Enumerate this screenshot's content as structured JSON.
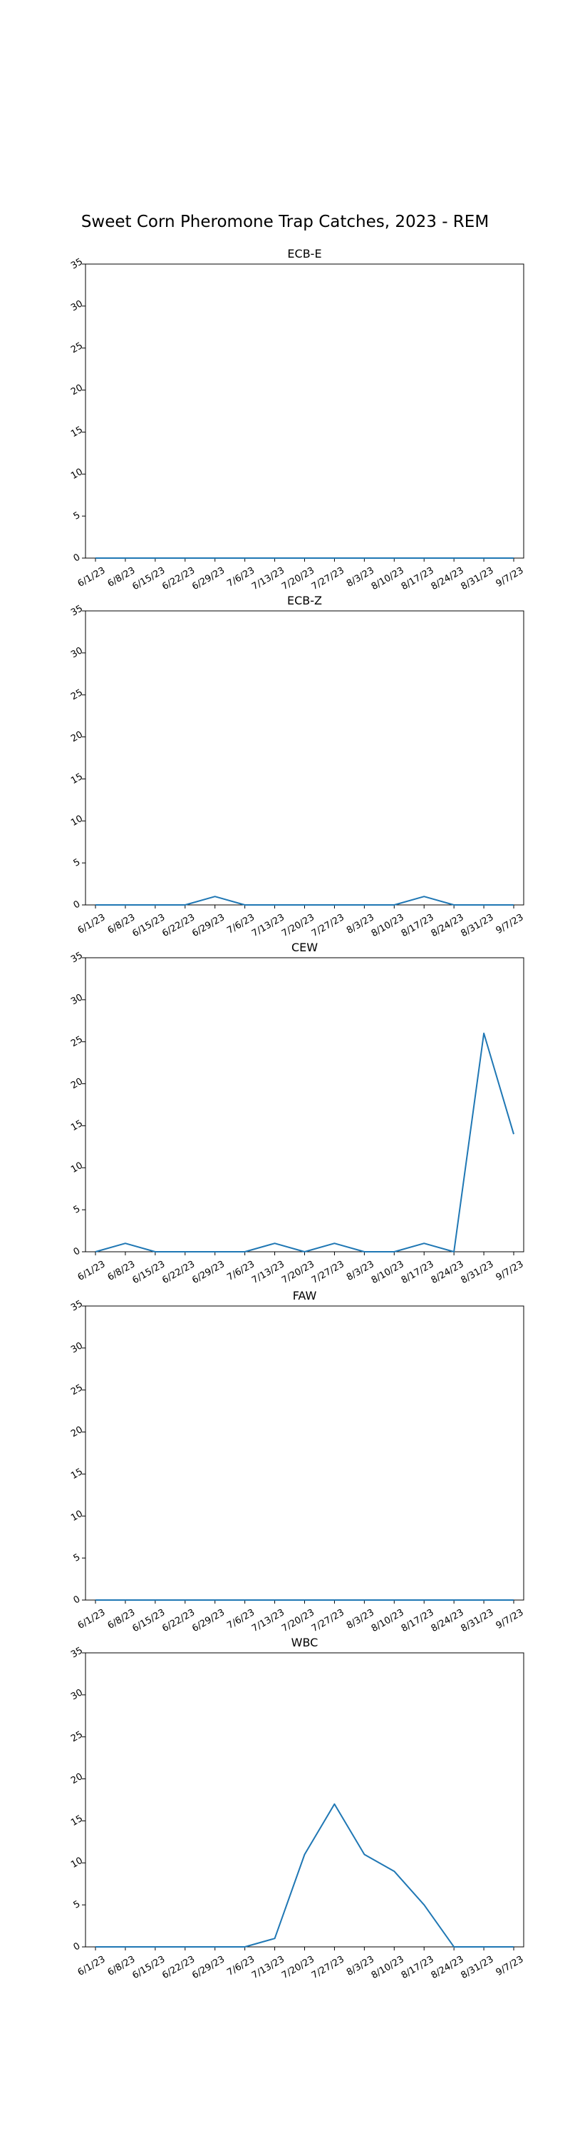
{
  "chart_data": {
    "type": "line",
    "suptitle": "Sweet Corn Pheromone Trap Catches, 2023 - REM",
    "x": [
      "6/1/23",
      "6/8/23",
      "6/15/23",
      "6/22/23",
      "6/29/23",
      "7/6/23",
      "7/13/23",
      "7/20/23",
      "7/27/23",
      "8/3/23",
      "8/10/23",
      "8/17/23",
      "8/24/23",
      "8/31/23",
      "9/7/23"
    ],
    "ylim": [
      0,
      35
    ],
    "yticks": [
      0,
      5,
      10,
      15,
      20,
      25,
      30,
      35
    ],
    "grid": false,
    "color": "#1f77b4",
    "panels": [
      {
        "title": "ECB-E",
        "values": [
          0,
          0,
          0,
          0,
          0,
          0,
          0,
          0,
          0,
          0,
          0,
          0,
          0,
          0,
          0
        ]
      },
      {
        "title": "ECB-Z",
        "values": [
          0,
          0,
          0,
          0,
          1,
          0,
          0,
          0,
          0,
          0,
          0,
          1,
          0,
          0,
          0
        ]
      },
      {
        "title": "CEW",
        "values": [
          0,
          1,
          0,
          0,
          0,
          0,
          1,
          0,
          1,
          0,
          0,
          1,
          0,
          26,
          14
        ]
      },
      {
        "title": "FAW",
        "values": [
          0,
          0,
          0,
          0,
          0,
          0,
          0,
          0,
          0,
          0,
          0,
          0,
          0,
          0,
          0
        ]
      },
      {
        "title": "WBC",
        "values": [
          0,
          0,
          0,
          0,
          0,
          0,
          1,
          11,
          17,
          11,
          9,
          5,
          0,
          0,
          0
        ]
      }
    ]
  }
}
